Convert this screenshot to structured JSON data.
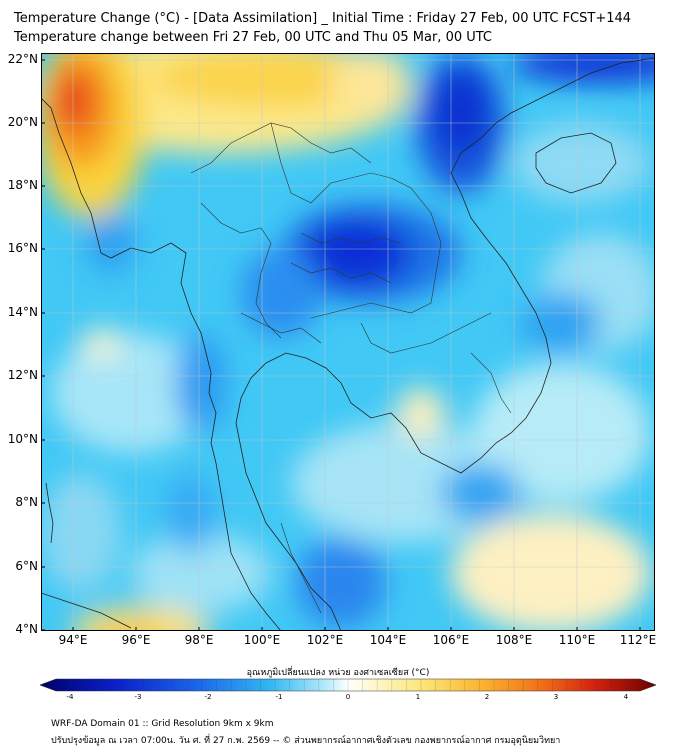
{
  "header": {
    "title_line1": "Temperature Change (°C) - [Data Assimilation] _ Initial Time : Friday 27 Feb, 00 UTC FCST+144",
    "title_line2": "Temperature change between Fri 27 Feb, 00 UTC and Thu 05 Mar, 00 UTC"
  },
  "map": {
    "lat_labels": [
      "22°N",
      "20°N",
      "18°N",
      "16°N",
      "14°N",
      "12°N",
      "10°N",
      "8°N",
      "6°N",
      "4°N"
    ],
    "lon_labels": [
      "94°E",
      "96°E",
      "98°E",
      "100°E",
      "102°E",
      "104°E",
      "106°E",
      "108°E",
      "110°E",
      "112°E"
    ],
    "extent": {
      "lon_min": 93.0,
      "lon_max": 112.5,
      "lat_min": 4.0,
      "lat_max": 22.2
    }
  },
  "colorbar": {
    "title": "อุณหภูมิเปลี่ยนแปลง หน่วย องศาเซลเซียส (°C)",
    "ticks": [
      "-4",
      "-3",
      "-2",
      "-1",
      "0",
      "1",
      "2",
      "3",
      "4"
    ],
    "min": -4,
    "max": 4
  },
  "footer": {
    "line1": "WRF-DA Domain 01 :: Grid Resolution 9km x 9km",
    "line2": "ปรับปรุงข้อมูล ณ เวลา 07:00น. วัน ศ. ที่ 27 ก.พ. 2569 -- © ส่วนพยากรณ์อากาศเชิงตัวเลข กองพยากรณ์อากาศ กรมอุตุนิยมวิทยา"
  }
}
